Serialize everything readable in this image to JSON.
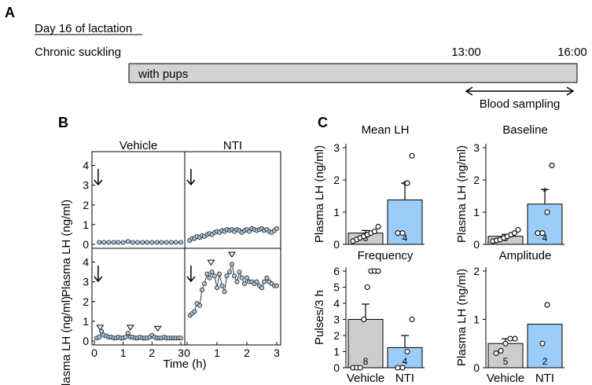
{
  "panel_a": {
    "label": "A",
    "day_label": "Day 16 of lactation",
    "condition": "Chronic suckling",
    "bar_label": "with pups",
    "time_start": "13:00",
    "time_end": "16:00",
    "sampling_label": "Blood sampling"
  },
  "panel_b": {
    "label": "B"
  },
  "panel_c": {
    "label": "C"
  },
  "colors": {
    "vehicle": "#cccccc",
    "nti": "#9ccdf8",
    "marker": "#a9c6de",
    "bar_a": "#d3d3d3"
  },
  "chart_data": [
    {
      "id": "b_vehicle_top",
      "type": "line",
      "title": "Vehicle",
      "ylabel": "Plasma LH (ng/ml)",
      "xlim": [
        0,
        3
      ],
      "ylim": [
        0,
        4.5
      ],
      "yticks": [
        "0",
        "1",
        "2",
        "3",
        "4"
      ],
      "xticks": [],
      "arrow_x": 0.05,
      "x": [
        0.17,
        0.33,
        0.5,
        0.67,
        0.83,
        1.0,
        1.17,
        1.33,
        1.5,
        1.67,
        1.83,
        2.0,
        2.17,
        2.33,
        2.5,
        2.67,
        2.83,
        3.0
      ],
      "y": [
        0.1,
        0.1,
        0.1,
        0.1,
        0.1,
        0.1,
        0.15,
        0.1,
        0.1,
        0.1,
        0.1,
        0.1,
        0.1,
        0.1,
        0.1,
        0.1,
        0.1,
        0.1
      ],
      "pulses": []
    },
    {
      "id": "b_nti_top",
      "type": "line",
      "title": "NTI",
      "ylabel": "",
      "xlim": [
        0,
        3
      ],
      "ylim": [
        0,
        4.5
      ],
      "yticks": [],
      "xticks": [],
      "arrow_x": 0.05,
      "x": [
        0.08,
        0.17,
        0.25,
        0.33,
        0.42,
        0.5,
        0.58,
        0.67,
        0.75,
        0.83,
        0.92,
        1.0,
        1.08,
        1.17,
        1.25,
        1.33,
        1.42,
        1.5,
        1.58,
        1.67,
        1.75,
        1.83,
        1.92,
        2.0,
        2.08,
        2.17,
        2.25,
        2.33,
        2.42,
        2.5,
        2.58,
        2.67,
        2.75,
        2.83,
        2.92,
        3.0
      ],
      "y": [
        0.2,
        0.3,
        0.3,
        0.4,
        0.35,
        0.45,
        0.4,
        0.5,
        0.55,
        0.5,
        0.6,
        0.65,
        0.6,
        0.7,
        0.65,
        0.75,
        0.7,
        0.75,
        0.65,
        0.75,
        0.7,
        0.6,
        0.7,
        0.75,
        0.65,
        0.8,
        0.75,
        0.7,
        0.75,
        0.8,
        0.7,
        0.75,
        0.65,
        0.6,
        0.7,
        0.8
      ],
      "pulses": []
    },
    {
      "id": "b_vehicle_bottom",
      "type": "line",
      "ylabel": "Plasma LH (ng/ml)",
      "xlabel": "Time (h)",
      "xlim": [
        0,
        3
      ],
      "ylim": [
        0,
        4.5
      ],
      "yticks": [
        "0",
        "1",
        "2",
        "3",
        "4"
      ],
      "xticks": [
        "0",
        "1",
        "2",
        "3"
      ],
      "arrow_x": 0.05,
      "x": [
        0.08,
        0.17,
        0.25,
        0.33,
        0.42,
        0.5,
        0.58,
        0.67,
        0.75,
        0.83,
        0.92,
        1.0,
        1.08,
        1.17,
        1.25,
        1.33,
        1.42,
        1.5,
        1.58,
        1.67,
        1.75,
        1.83,
        1.92,
        2.0,
        2.08,
        2.17,
        2.25,
        2.33,
        2.42,
        2.5,
        2.58,
        2.67,
        2.75,
        2.83,
        2.92,
        3.0
      ],
      "y": [
        0.15,
        0.2,
        0.5,
        0.3,
        0.25,
        0.2,
        0.2,
        0.15,
        0.15,
        0.2,
        0.15,
        0.15,
        0.2,
        0.4,
        0.2,
        0.2,
        0.15,
        0.15,
        0.2,
        0.15,
        0.15,
        0.15,
        0.2,
        0.3,
        0.2,
        0.15,
        0.15,
        0.15,
        0.2,
        0.15,
        0.15,
        0.15,
        0.15,
        0.15,
        0.15,
        0.15
      ],
      "pulses": [
        0.2,
        1.25,
        2.2
      ]
    },
    {
      "id": "b_nti_bottom",
      "type": "line",
      "xlabel": "Time (h)",
      "xlim": [
        0,
        3
      ],
      "ylim": [
        0,
        4.5
      ],
      "yticks": [],
      "xticks": [
        "0",
        "1",
        "2",
        "3"
      ],
      "arrow_x": 0.05,
      "x": [
        0.1,
        0.17,
        0.25,
        0.33,
        0.42,
        0.5,
        0.58,
        0.67,
        0.75,
        0.83,
        0.92,
        1.0,
        1.08,
        1.17,
        1.25,
        1.33,
        1.42,
        1.5,
        1.58,
        1.67,
        1.75,
        1.83,
        1.92,
        2.0,
        2.08,
        2.17,
        2.25,
        2.33,
        2.42,
        2.5,
        2.58,
        2.67,
        2.75,
        2.83,
        2.92,
        3.0
      ],
      "y": [
        1.3,
        1.4,
        1.5,
        1.9,
        1.8,
        2.6,
        2.9,
        3.4,
        3.2,
        3.5,
        3.3,
        2.7,
        3.4,
        2.8,
        2.5,
        3.3,
        3.5,
        3.9,
        3.3,
        3.0,
        3.5,
        3.2,
        2.9,
        3.2,
        3.0,
        3.0,
        2.9,
        3.0,
        2.8,
        2.7,
        3.0,
        3.2,
        3.0,
        2.9,
        2.8,
        2.8
      ],
      "pulses": [
        0.8,
        1.5
      ]
    },
    {
      "id": "c_mean_lh",
      "type": "bar",
      "title": "Mean LH",
      "ylabel": "Plasma LH (ng/ml)",
      "ylim": [
        0,
        3
      ],
      "yticks": [
        "0",
        "1",
        "2",
        "3"
      ],
      "categories": [
        "Vehicle",
        "NTI"
      ],
      "show_category_labels": false,
      "values": [
        0.35,
        1.38
      ],
      "errors": [
        0.08,
        0.52
      ],
      "n": [
        "8",
        "4"
      ],
      "significance": [
        "",
        "*"
      ],
      "points": [
        [
          0.1,
          0.15,
          0.2,
          0.25,
          0.3,
          0.35,
          0.4,
          0.55
        ],
        [
          0.35,
          0.35,
          1.9,
          2.75
        ]
      ]
    },
    {
      "id": "c_baseline",
      "type": "bar",
      "title": "Baseline",
      "ylabel": "Plasma LH (ng/ml)",
      "ylim": [
        0,
        3
      ],
      "yticks": [
        "0",
        "1",
        "2",
        "3"
      ],
      "categories": [
        "Vehicle",
        "NTI"
      ],
      "show_category_labels": false,
      "values": [
        0.25,
        1.25
      ],
      "errors": [
        0.06,
        0.45
      ],
      "n": [
        "8",
        "4"
      ],
      "significance": [
        "",
        "*"
      ],
      "points": [
        [
          0.1,
          0.12,
          0.15,
          0.2,
          0.25,
          0.3,
          0.35,
          0.45
        ],
        [
          0.35,
          0.35,
          1.0,
          2.45
        ]
      ]
    },
    {
      "id": "c_frequency",
      "type": "bar",
      "title": "Frequency",
      "ylabel": "Pulses/3 h",
      "ylim": [
        0,
        6
      ],
      "yticks": [
        "0",
        "1",
        "2",
        "3",
        "4",
        "5",
        "6"
      ],
      "categories": [
        "Vehicle",
        "NTI"
      ],
      "show_category_labels": true,
      "values": [
        3.0,
        1.25
      ],
      "errors": [
        0.95,
        0.75
      ],
      "n": [
        "8",
        "4"
      ],
      "significance": [
        "",
        ""
      ],
      "points": [
        [
          0,
          0,
          0,
          3,
          5,
          6,
          6,
          6
        ],
        [
          0,
          0,
          1,
          3
        ]
      ]
    },
    {
      "id": "c_amplitude",
      "type": "bar",
      "title": "Amplitude",
      "ylabel": "Plasma LH (ng/ml)",
      "ylim": [
        0,
        2
      ],
      "yticks": [
        "0",
        "1",
        "2"
      ],
      "categories": [
        "Vehicle",
        "NTI"
      ],
      "show_category_labels": true,
      "values": [
        0.5,
        0.9
      ],
      "errors": [
        0.1,
        0
      ],
      "n": [
        "5",
        "2"
      ],
      "significance": [
        "",
        ""
      ],
      "points": [
        [
          0.3,
          0.35,
          0.5,
          0.6,
          0.6
        ],
        [
          0.5,
          1.3
        ]
      ]
    }
  ]
}
